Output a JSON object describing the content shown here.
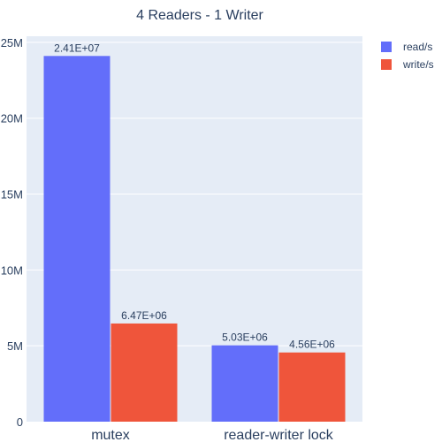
{
  "chart_data": {
    "type": "bar",
    "title": "4 Readers - 1 Writer",
    "categories": [
      "mutex",
      "reader-writer lock"
    ],
    "series": [
      {
        "name": "read/s",
        "values": [
          24100000,
          5030000
        ],
        "labels": [
          "2.41E+07",
          "5.03E+06"
        ],
        "color": "#636efa"
      },
      {
        "name": "write/s",
        "values": [
          6470000,
          4560000
        ],
        "labels": [
          "6.47E+06",
          "4.56E+06"
        ],
        "color": "#ef553b"
      }
    ],
    "xlabel": "",
    "ylabel": "",
    "ylim": [
      0,
      25400000
    ],
    "yticks": [
      0,
      5000000,
      10000000,
      15000000,
      20000000,
      25000000
    ],
    "ytick_labels": [
      "0",
      "5M",
      "10M",
      "15M",
      "20M",
      "25M"
    ],
    "grid": true,
    "legend_position": "top-right",
    "colors": {
      "plot_background": "#e5ecf6",
      "grid": "#ffffff",
      "text": "#2a3f5f"
    }
  }
}
